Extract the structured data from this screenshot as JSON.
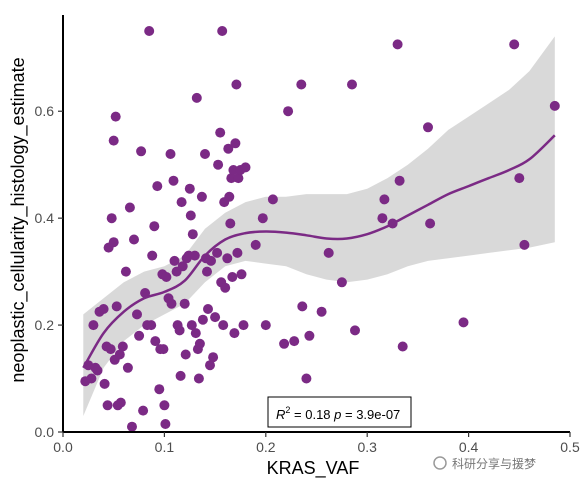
{
  "chart_data": {
    "type": "scatter",
    "xlabel": "KRAS_VAF",
    "ylabel": "neoplastic_cellularity_histology_estimate",
    "xlim": [
      0.0,
      0.5
    ],
    "ylim": [
      0.0,
      0.78
    ],
    "xticks": [
      "0.0",
      "0.1",
      "0.2",
      "0.3",
      "0.4",
      "0.5"
    ],
    "xtick_values": [
      0.0,
      0.1,
      0.2,
      0.3,
      0.4,
      0.5
    ],
    "yticks": [
      "0.0",
      "0.2",
      "0.4",
      "0.6"
    ],
    "ytick_values": [
      0.0,
      0.2,
      0.4,
      0.6
    ],
    "grid": false,
    "point_color": "#7B2A85",
    "line_color": "#7B2A85",
    "band_color": "#D9D9D9",
    "annotation": {
      "r_label": "R",
      "r_sup": "2",
      "r_value": " = 0.18 ",
      "p_label": "p",
      "p_value": " = 3.9e-07"
    },
    "watermark": "科研分享与援梦",
    "points": [
      [
        0.022,
        0.095
      ],
      [
        0.025,
        0.125
      ],
      [
        0.028,
        0.1
      ],
      [
        0.03,
        0.2
      ],
      [
        0.032,
        0.12
      ],
      [
        0.034,
        0.115
      ],
      [
        0.036,
        0.225
      ],
      [
        0.04,
        0.23
      ],
      [
        0.041,
        0.09
      ],
      [
        0.043,
        0.16
      ],
      [
        0.044,
        0.05
      ],
      [
        0.045,
        0.345
      ],
      [
        0.047,
        0.155
      ],
      [
        0.048,
        0.4
      ],
      [
        0.05,
        0.545
      ],
      [
        0.05,
        0.355
      ],
      [
        0.051,
        0.135
      ],
      [
        0.052,
        0.59
      ],
      [
        0.053,
        0.235
      ],
      [
        0.054,
        0.05
      ],
      [
        0.056,
        0.145
      ],
      [
        0.057,
        0.055
      ],
      [
        0.059,
        0.16
      ],
      [
        0.062,
        0.3
      ],
      [
        0.064,
        0.12
      ],
      [
        0.066,
        0.42
      ],
      [
        0.068,
        0.01
      ],
      [
        0.07,
        0.36
      ],
      [
        0.073,
        0.22
      ],
      [
        0.075,
        0.18
      ],
      [
        0.077,
        0.525
      ],
      [
        0.079,
        0.04
      ],
      [
        0.081,
        0.26
      ],
      [
        0.083,
        0.2
      ],
      [
        0.085,
        0.75
      ],
      [
        0.087,
        0.2
      ],
      [
        0.088,
        0.33
      ],
      [
        0.09,
        0.385
      ],
      [
        0.091,
        0.17
      ],
      [
        0.093,
        0.46
      ],
      [
        0.095,
        0.08
      ],
      [
        0.096,
        0.155
      ],
      [
        0.098,
        0.295
      ],
      [
        0.099,
        0.155
      ],
      [
        0.1,
        0.05
      ],
      [
        0.101,
        0.015
      ],
      [
        0.102,
        0.29
      ],
      [
        0.104,
        0.25
      ],
      [
        0.106,
        0.52
      ],
      [
        0.107,
        0.24
      ],
      [
        0.109,
        0.47
      ],
      [
        0.11,
        0.32
      ],
      [
        0.112,
        0.3
      ],
      [
        0.113,
        0.2
      ],
      [
        0.115,
        0.19
      ],
      [
        0.116,
        0.105
      ],
      [
        0.117,
        0.43
      ],
      [
        0.118,
        0.31
      ],
      [
        0.12,
        0.24
      ],
      [
        0.121,
        0.145
      ],
      [
        0.122,
        0.325
      ],
      [
        0.124,
        0.33
      ],
      [
        0.125,
        0.455
      ],
      [
        0.126,
        0.405
      ],
      [
        0.127,
        0.2
      ],
      [
        0.128,
        0.37
      ],
      [
        0.13,
        0.33
      ],
      [
        0.131,
        0.185
      ],
      [
        0.132,
        0.625
      ],
      [
        0.133,
        0.155
      ],
      [
        0.134,
        0.1
      ],
      [
        0.135,
        0.165
      ],
      [
        0.137,
        0.44
      ],
      [
        0.138,
        0.21
      ],
      [
        0.14,
        0.52
      ],
      [
        0.141,
        0.325
      ],
      [
        0.142,
        0.3
      ],
      [
        0.143,
        0.23
      ],
      [
        0.145,
        0.125
      ],
      [
        0.146,
        0.32
      ],
      [
        0.148,
        0.14
      ],
      [
        0.15,
        0.215
      ],
      [
        0.152,
        0.335
      ],
      [
        0.153,
        0.5
      ],
      [
        0.155,
        0.56
      ],
      [
        0.156,
        0.28
      ],
      [
        0.157,
        0.75
      ],
      [
        0.158,
        0.2
      ],
      [
        0.159,
        0.43
      ],
      [
        0.16,
        0.27
      ],
      [
        0.162,
        0.325
      ],
      [
        0.163,
        0.53
      ],
      [
        0.164,
        0.44
      ],
      [
        0.165,
        0.39
      ],
      [
        0.166,
        0.475
      ],
      [
        0.167,
        0.29
      ],
      [
        0.168,
        0.49
      ],
      [
        0.169,
        0.185
      ],
      [
        0.17,
        0.54
      ],
      [
        0.171,
        0.65
      ],
      [
        0.172,
        0.335
      ],
      [
        0.173,
        0.475
      ],
      [
        0.175,
        0.49
      ],
      [
        0.176,
        0.295
      ],
      [
        0.178,
        0.2
      ],
      [
        0.18,
        0.495
      ],
      [
        0.19,
        0.35
      ],
      [
        0.197,
        0.4
      ],
      [
        0.2,
        0.2
      ],
      [
        0.207,
        0.435
      ],
      [
        0.218,
        0.165
      ],
      [
        0.222,
        0.6
      ],
      [
        0.228,
        0.17
      ],
      [
        0.235,
        0.65
      ],
      [
        0.236,
        0.235
      ],
      [
        0.24,
        0.1
      ],
      [
        0.243,
        0.18
      ],
      [
        0.255,
        0.225
      ],
      [
        0.262,
        0.335
      ],
      [
        0.275,
        0.28
      ],
      [
        0.285,
        0.65
      ],
      [
        0.288,
        0.19
      ],
      [
        0.315,
        0.4
      ],
      [
        0.317,
        0.435
      ],
      [
        0.325,
        0.39
      ],
      [
        0.33,
        0.725
      ],
      [
        0.332,
        0.47
      ],
      [
        0.335,
        0.16
      ],
      [
        0.338,
        0.05
      ],
      [
        0.36,
        0.57
      ],
      [
        0.362,
        0.39
      ],
      [
        0.395,
        0.205
      ],
      [
        0.445,
        0.725
      ],
      [
        0.45,
        0.475
      ],
      [
        0.455,
        0.35
      ],
      [
        0.485,
        0.61
      ]
    ],
    "smooth": [
      [
        0.02,
        0.12,
        0.03,
        0.22
      ],
      [
        0.04,
        0.185,
        0.12,
        0.25
      ],
      [
        0.06,
        0.225,
        0.17,
        0.28
      ],
      [
        0.08,
        0.25,
        0.2,
        0.3
      ],
      [
        0.1,
        0.262,
        0.22,
        0.31
      ],
      [
        0.12,
        0.283,
        0.24,
        0.33
      ],
      [
        0.14,
        0.33,
        0.28,
        0.38
      ],
      [
        0.16,
        0.36,
        0.31,
        0.41
      ],
      [
        0.18,
        0.372,
        0.32,
        0.43
      ],
      [
        0.2,
        0.375,
        0.315,
        0.44
      ],
      [
        0.22,
        0.373,
        0.31,
        0.44
      ],
      [
        0.24,
        0.368,
        0.295,
        0.445
      ],
      [
        0.26,
        0.362,
        0.285,
        0.445
      ],
      [
        0.28,
        0.362,
        0.28,
        0.445
      ],
      [
        0.3,
        0.37,
        0.285,
        0.455
      ],
      [
        0.32,
        0.385,
        0.295,
        0.475
      ],
      [
        0.34,
        0.405,
        0.31,
        0.5
      ],
      [
        0.36,
        0.425,
        0.32,
        0.53
      ],
      [
        0.38,
        0.445,
        0.325,
        0.565
      ],
      [
        0.4,
        0.46,
        0.33,
        0.59
      ],
      [
        0.42,
        0.475,
        0.335,
        0.615
      ],
      [
        0.44,
        0.49,
        0.34,
        0.64
      ],
      [
        0.46,
        0.51,
        0.345,
        0.675
      ],
      [
        0.485,
        0.555,
        0.355,
        0.74
      ]
    ]
  }
}
